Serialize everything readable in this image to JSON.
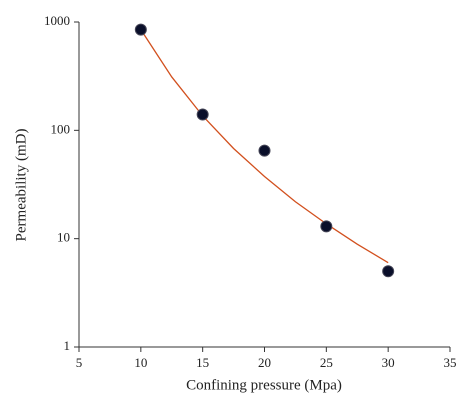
{
  "chart_data": {
    "type": "scatter",
    "log_y": true,
    "xlabel": "Confining pressure (Mpa)",
    "ylabel": "Permeability (mD)",
    "xlim": [
      5,
      35
    ],
    "xticks": [
      5,
      10,
      15,
      20,
      25,
      30,
      35
    ],
    "ylim": [
      1,
      1000
    ],
    "yticks": [
      1,
      10,
      100,
      1000
    ],
    "series": [
      {
        "kind": "points",
        "color": "#0a0f2a",
        "x": [
          10,
          15,
          20,
          25,
          30
        ],
        "values": [
          850,
          140,
          65,
          13,
          5
        ]
      },
      {
        "kind": "line",
        "color": "#d2501e",
        "x": [
          10,
          12.5,
          15,
          17.5,
          20,
          22.5,
          25,
          27.5,
          30
        ],
        "values": [
          850,
          311,
          136,
          68,
          37.5,
          21.9,
          13.7,
          8.9,
          6.0
        ]
      }
    ]
  }
}
